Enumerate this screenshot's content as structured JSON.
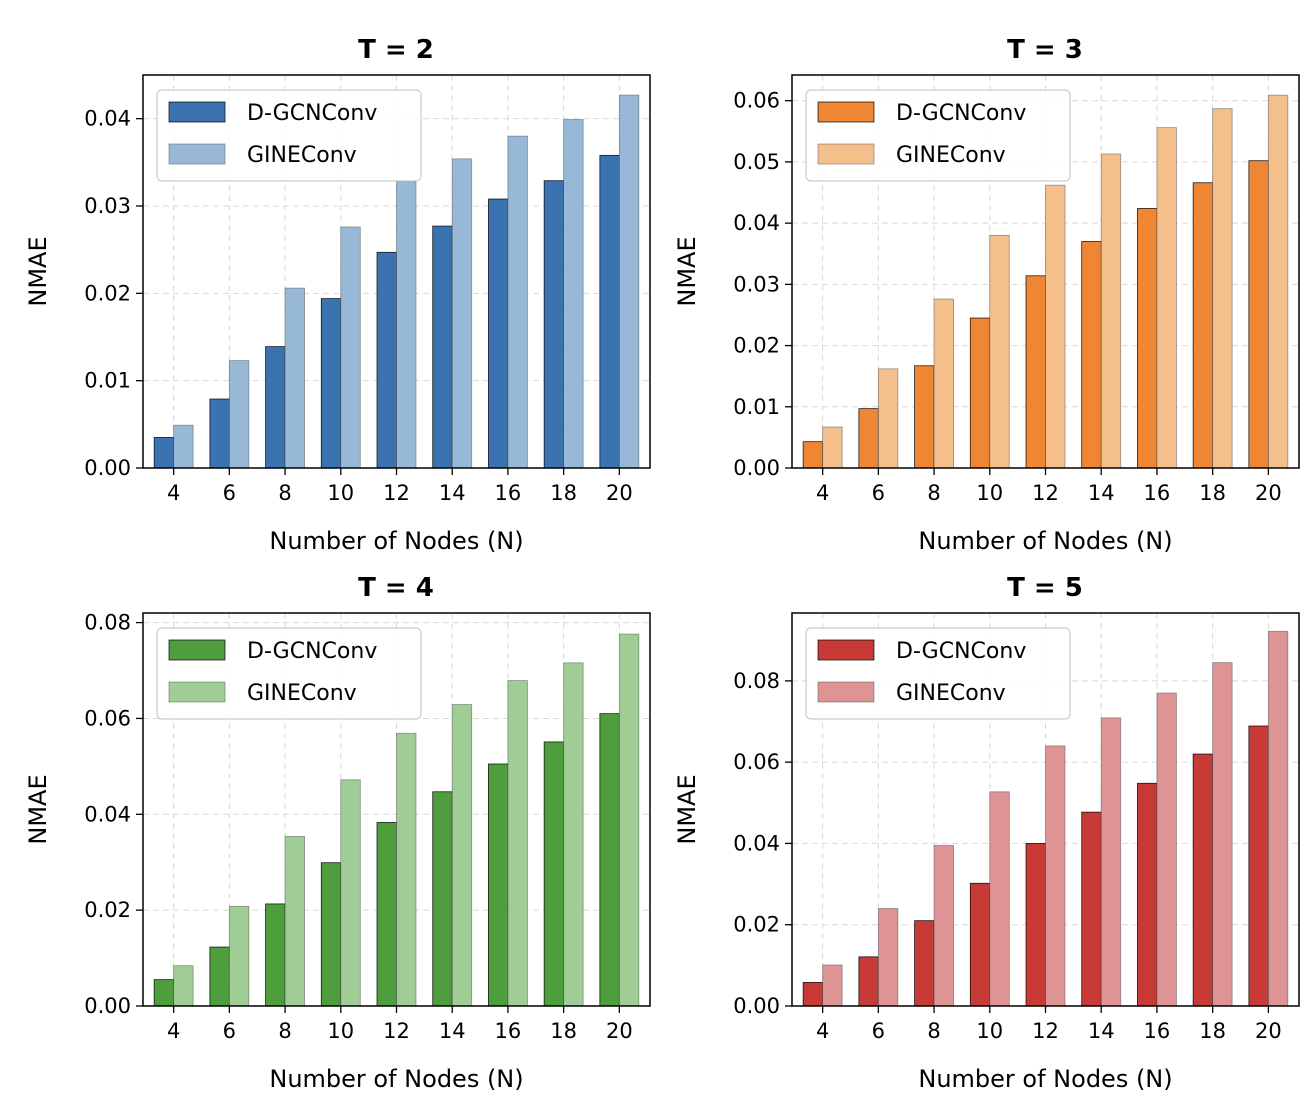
{
  "chart_data": [
    {
      "type": "bar",
      "title": "T = 2",
      "xlabel": "Number of Nodes (N)",
      "ylabel": "NMAE",
      "categories": [
        "4",
        "6",
        "8",
        "10",
        "12",
        "14",
        "16",
        "18",
        "20"
      ],
      "ylim": [
        0,
        0.045
      ],
      "yticks": [
        "0.00",
        "0.01",
        "0.02",
        "0.03",
        "0.04"
      ],
      "series": [
        {
          "name": "D-GCNConv",
          "color": "#3b73b1",
          "values": [
            0.0035,
            0.0079,
            0.0139,
            0.0194,
            0.0247,
            0.0277,
            0.0308,
            0.0329,
            0.0358
          ]
        },
        {
          "name": "GINEConv",
          "color": "#98b8d8",
          "values": [
            0.0049,
            0.0123,
            0.0206,
            0.0276,
            0.0328,
            0.0354,
            0.038,
            0.0399,
            0.0427
          ]
        }
      ],
      "legend": "top-left",
      "grid": true
    },
    {
      "type": "bar",
      "title": "T = 3",
      "xlabel": "Number of Nodes (N)",
      "ylabel": "NMAE",
      "categories": [
        "4",
        "6",
        "8",
        "10",
        "12",
        "14",
        "16",
        "18",
        "20"
      ],
      "ylim": [
        0,
        0.0642
      ],
      "yticks": [
        "0.00",
        "0.01",
        "0.02",
        "0.03",
        "0.04",
        "0.05",
        "0.06"
      ],
      "series": [
        {
          "name": "D-GCNConv",
          "color": "#ef8634",
          "values": [
            0.0043,
            0.0097,
            0.0167,
            0.0245,
            0.0314,
            0.037,
            0.0424,
            0.0466,
            0.0502
          ]
        },
        {
          "name": "GINEConv",
          "color": "#f5bf8c",
          "values": [
            0.0067,
            0.0162,
            0.0276,
            0.038,
            0.0462,
            0.0513,
            0.0556,
            0.0587,
            0.0609
          ]
        }
      ],
      "legend": "top-left",
      "grid": true
    },
    {
      "type": "bar",
      "title": "T = 4",
      "xlabel": "Number of Nodes (N)",
      "ylabel": "NMAE",
      "categories": [
        "4",
        "6",
        "8",
        "10",
        "12",
        "14",
        "16",
        "18",
        "20"
      ],
      "ylim": [
        0,
        0.082
      ],
      "yticks": [
        "0.00",
        "0.02",
        "0.04",
        "0.06",
        "0.08"
      ],
      "series": [
        {
          "name": "D-GCNConv",
          "color": "#4e9e3e",
          "values": [
            0.0055,
            0.0123,
            0.0213,
            0.0299,
            0.0383,
            0.0447,
            0.0505,
            0.0551,
            0.061
          ]
        },
        {
          "name": "GINEConv",
          "color": "#a0cd96",
          "values": [
            0.0084,
            0.0208,
            0.0354,
            0.0472,
            0.0569,
            0.0629,
            0.0679,
            0.0716,
            0.0776
          ]
        }
      ],
      "legend": "top-left",
      "grid": true
    },
    {
      "type": "bar",
      "title": "T = 5",
      "xlabel": "Number of Nodes (N)",
      "ylabel": "NMAE",
      "categories": [
        "4",
        "6",
        "8",
        "10",
        "12",
        "14",
        "16",
        "18",
        "20"
      ],
      "ylim": [
        0,
        0.0967
      ],
      "yticks": [
        "0.00",
        "0.02",
        "0.04",
        "0.06",
        "0.08"
      ],
      "series": [
        {
          "name": "D-GCNConv",
          "color": "#c73a35",
          "values": [
            0.0058,
            0.0121,
            0.021,
            0.0302,
            0.04,
            0.0477,
            0.0548,
            0.062,
            0.0689
          ]
        },
        {
          "name": "GINEConv",
          "color": "#de9494",
          "values": [
            0.0101,
            0.024,
            0.0395,
            0.0527,
            0.064,
            0.0709,
            0.077,
            0.0845,
            0.0922
          ]
        }
      ],
      "legend": "top-left",
      "grid": true
    }
  ]
}
